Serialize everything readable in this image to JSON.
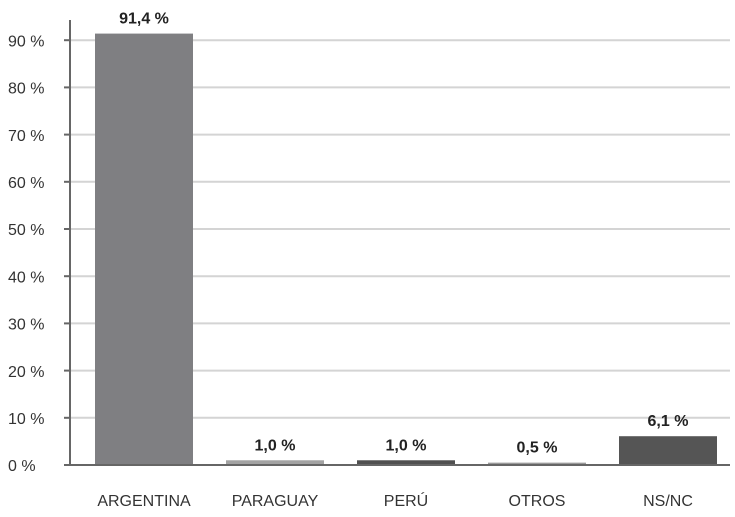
{
  "chart_data": {
    "type": "bar",
    "categories": [
      "ARGENTINA",
      "PARAGUAY",
      "PERÚ",
      "OTROS",
      "NS/NC"
    ],
    "values": [
      91.4,
      1.0,
      1.0,
      0.5,
      6.1
    ],
    "data_labels": [
      "91,4 %",
      "1,0 %",
      "1,0 %",
      "0,5 %",
      "6,1 %"
    ],
    "bar_colors": [
      "#7f7f82",
      "#a3a3a3",
      "#505050",
      "#9a9a9a",
      "#555555"
    ],
    "y_ticks": [
      0,
      10,
      20,
      30,
      40,
      50,
      60,
      70,
      80,
      90
    ],
    "y_tick_labels": [
      "0 %",
      "10 %",
      "20 %",
      "30 %",
      "40 %",
      "50 %",
      "60 %",
      "70 %",
      "80 %",
      "90 %"
    ],
    "ylim": [
      0,
      95
    ],
    "grid": true,
    "legend": "none",
    "title": "",
    "xlabel": "",
    "ylabel": ""
  }
}
